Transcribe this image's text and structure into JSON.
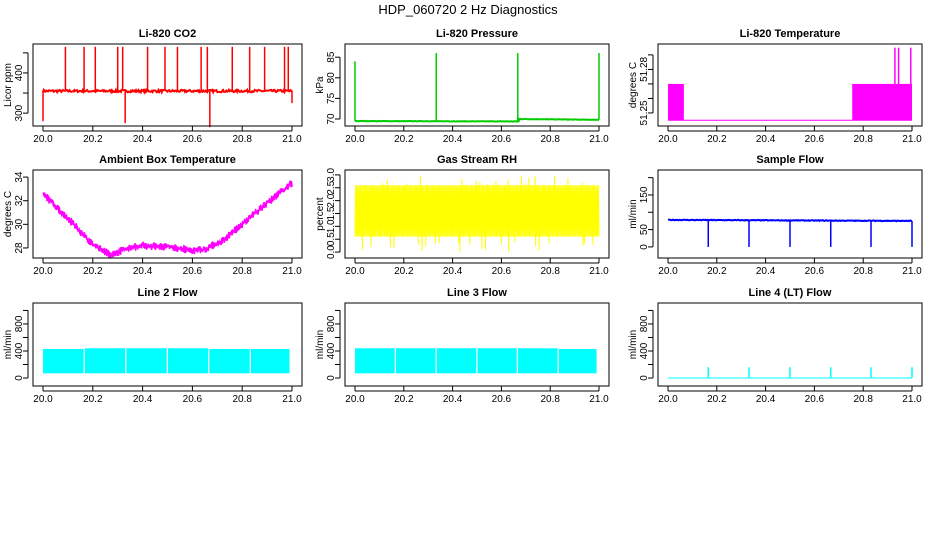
{
  "title": "HDP_060720  2 Hz Diagnostics",
  "chart_data": [
    {
      "type": "line",
      "title": "Li-820 CO2",
      "ylabel": "Licor ppm",
      "color": "#ff0000",
      "xlim": [
        20,
        21
      ],
      "ylim": [
        268,
        472
      ],
      "xticks": [
        "20.0",
        "20.2",
        "20.4",
        "20.6",
        "20.8",
        "21.0"
      ],
      "yticks": [
        {
          "v": 300,
          "label": "300"
        },
        {
          "v": 350,
          "label": ""
        },
        {
          "v": 400,
          "label": "400"
        },
        {
          "v": 450,
          "label": ""
        }
      ],
      "baseline": [
        [
          20.0,
          355
        ],
        [
          21.0,
          355
        ]
      ],
      "noise": 6,
      "spikes": [
        [
          20.0,
          280
        ],
        [
          20.09,
          465
        ],
        [
          20.165,
          465
        ],
        [
          20.21,
          465
        ],
        [
          20.3,
          465
        ],
        [
          20.32,
          465
        ],
        [
          20.33,
          275
        ],
        [
          20.42,
          465
        ],
        [
          20.49,
          465
        ],
        [
          20.54,
          465
        ],
        [
          20.635,
          465
        ],
        [
          20.66,
          465
        ],
        [
          20.67,
          265
        ],
        [
          20.76,
          465
        ],
        [
          20.83,
          465
        ],
        [
          20.89,
          465
        ],
        [
          20.97,
          465
        ],
        [
          20.985,
          465
        ],
        [
          21.0,
          325
        ]
      ]
    },
    {
      "type": "line",
      "title": "Li-820 Pressure",
      "ylabel": "kPa",
      "color": "#00cc00",
      "xlim": [
        20,
        21
      ],
      "ylim": [
        68.3,
        88.2
      ],
      "xticks": [
        "20.0",
        "20.2",
        "20.4",
        "20.6",
        "20.8",
        "21.0"
      ],
      "yticks": [
        {
          "v": 70,
          "label": "70"
        },
        {
          "v": 75,
          "label": "75"
        },
        {
          "v": 80,
          "label": "80"
        },
        {
          "v": 85,
          "label": "85"
        }
      ],
      "baseline": [
        [
          20.0,
          69.5
        ],
        [
          20.67,
          69.4
        ],
        [
          20.671,
          70.0
        ],
        [
          21.0,
          69.8
        ]
      ],
      "noise": 0.1,
      "spikes": [
        [
          20.0,
          84
        ],
        [
          20.333,
          86
        ],
        [
          20.667,
          86
        ],
        [
          21.0,
          86
        ]
      ]
    },
    {
      "type": "line",
      "title": "Li-820 Temperature",
      "ylabel": "degrees C",
      "color": "#ff00ff",
      "xlim": [
        20,
        21
      ],
      "ylim": [
        51.241,
        51.2975
      ],
      "xticks": [
        "20.0",
        "20.2",
        "20.4",
        "20.6",
        "20.8",
        "21.0"
      ],
      "yticks": [
        {
          "v": 51.25,
          "label": "51.25"
        },
        {
          "v": 51.26,
          "label": ""
        },
        {
          "v": 51.27,
          "label": ""
        },
        {
          "v": 51.28,
          "label": "51.28"
        },
        {
          "v": 51.29,
          "label": ""
        }
      ],
      "baseline": [
        [
          20.0,
          51.245
        ],
        [
          21.0,
          51.245
        ]
      ],
      "noise": 0,
      "bands": [
        [
          20.0,
          20.065,
          51.245,
          51.27
        ],
        [
          20.755,
          21.0,
          51.245,
          51.27
        ]
      ],
      "spikes": [
        [
          20.93,
          51.295
        ],
        [
          20.945,
          51.295
        ],
        [
          20.995,
          51.295
        ]
      ]
    },
    {
      "type": "area",
      "title": "Ambient Box Temperature",
      "ylabel": "degrees C",
      "color": "#ff00ff",
      "xlim": [
        20,
        21
      ],
      "ylim": [
        27.15,
        34.6
      ],
      "xticks": [
        "20.0",
        "20.2",
        "20.4",
        "20.6",
        "20.8",
        "21.0"
      ],
      "yticks": [
        {
          "v": 28,
          "label": "28"
        },
        {
          "v": 30,
          "label": "30"
        },
        {
          "v": 32,
          "label": "32"
        },
        {
          "v": 34,
          "label": "34"
        }
      ],
      "band_width": 0.7,
      "baseline": [
        [
          20.0,
          32.6
        ],
        [
          20.1,
          30.5
        ],
        [
          20.2,
          28.3
        ],
        [
          20.27,
          27.4
        ],
        [
          20.33,
          27.9
        ],
        [
          20.4,
          28.2
        ],
        [
          20.5,
          28.1
        ],
        [
          20.6,
          27.8
        ],
        [
          20.65,
          27.9
        ],
        [
          20.72,
          28.6
        ],
        [
          20.8,
          30.0
        ],
        [
          20.9,
          31.8
        ],
        [
          21.0,
          33.5
        ]
      ]
    },
    {
      "type": "area",
      "title": "Gas Stream RH",
      "ylabel": "percent",
      "color": "#ffff00",
      "xlim": [
        20,
        21
      ],
      "ylim": [
        -0.23,
        3.19
      ],
      "xticks": [
        "20.0",
        "20.2",
        "20.4",
        "20.6",
        "20.8",
        "21.0"
      ],
      "yticks": [
        {
          "v": 0,
          "label": "0.0"
        },
        {
          "v": 0.5,
          "label": "0.5"
        },
        {
          "v": 1,
          "label": "1.0"
        },
        {
          "v": 1.5,
          "label": "1.5"
        },
        {
          "v": 2,
          "label": "2.0"
        },
        {
          "v": 2.5,
          "label": "2.5"
        },
        {
          "v": 3,
          "label": "3.0"
        }
      ],
      "noise_band": [
        0.6,
        2.6
      ],
      "noise_extreme": [
        0.0,
        3.0
      ]
    },
    {
      "type": "line",
      "title": "Sample Flow",
      "ylabel": "ml/min",
      "color": "#0000ff",
      "xlim": [
        20,
        21
      ],
      "ylim": [
        -32,
        222
      ],
      "xticks": [
        "20.0",
        "20.2",
        "20.4",
        "20.6",
        "20.8",
        "21.0"
      ],
      "yticks": [
        {
          "v": 0,
          "label": "0"
        },
        {
          "v": 50,
          "label": "50"
        },
        {
          "v": 100,
          "label": ""
        },
        {
          "v": 150,
          "label": "150"
        },
        {
          "v": 200,
          "label": ""
        }
      ],
      "baseline": [
        [
          20.0,
          78
        ],
        [
          21.0,
          75
        ]
      ],
      "noise": 2,
      "spikes": [
        [
          20.165,
          0
        ],
        [
          20.332,
          0
        ],
        [
          20.5,
          0
        ],
        [
          20.667,
          0
        ],
        [
          20.832,
          0
        ],
        [
          21.0,
          0
        ]
      ]
    },
    {
      "type": "area",
      "title": "Line 2 Flow",
      "ylabel": "ml/min",
      "color": "#00ffff",
      "xlim": [
        20,
        21
      ],
      "ylim": [
        -118,
        1110
      ],
      "xticks": [
        "20.0",
        "20.2",
        "20.4",
        "20.6",
        "20.8",
        "21.0"
      ],
      "yticks": [
        {
          "v": 0,
          "label": "0"
        },
        {
          "v": 200,
          "label": ""
        },
        {
          "v": 400,
          "label": "400"
        },
        {
          "v": 600,
          "label": ""
        },
        {
          "v": 800,
          "label": "800"
        },
        {
          "v": 1000,
          "label": ""
        }
      ],
      "segments": [
        [
          20.0,
          20.163,
          70,
          430
        ],
        [
          20.168,
          20.33,
          70,
          440
        ],
        [
          20.335,
          20.497,
          70,
          440
        ],
        [
          20.502,
          20.663,
          70,
          440
        ],
        [
          20.668,
          20.83,
          70,
          430
        ],
        [
          20.835,
          20.99,
          70,
          430
        ]
      ]
    },
    {
      "type": "area",
      "title": "Line 3 Flow",
      "ylabel": "ml/min",
      "color": "#00ffff",
      "xlim": [
        20,
        21
      ],
      "ylim": [
        -118,
        1110
      ],
      "xticks": [
        "20.0",
        "20.2",
        "20.4",
        "20.6",
        "20.8",
        "21.0"
      ],
      "yticks": [
        {
          "v": 0,
          "label": "0"
        },
        {
          "v": 200,
          "label": ""
        },
        {
          "v": 400,
          "label": "400"
        },
        {
          "v": 600,
          "label": ""
        },
        {
          "v": 800,
          "label": "800"
        },
        {
          "v": 1000,
          "label": ""
        }
      ],
      "segments": [
        [
          20.0,
          20.163,
          70,
          440
        ],
        [
          20.168,
          20.33,
          70,
          440
        ],
        [
          20.335,
          20.497,
          70,
          440
        ],
        [
          20.502,
          20.663,
          70,
          440
        ],
        [
          20.668,
          20.83,
          70,
          440
        ],
        [
          20.835,
          20.99,
          70,
          430
        ]
      ]
    },
    {
      "type": "line",
      "title": "Line 4 (LT) Flow",
      "ylabel": "ml/min",
      "color": "#00ffff",
      "xlim": [
        20,
        21
      ],
      "ylim": [
        -118,
        1110
      ],
      "xticks": [
        "20.0",
        "20.2",
        "20.4",
        "20.6",
        "20.8",
        "21.0"
      ],
      "yticks": [
        {
          "v": 0,
          "label": "0"
        },
        {
          "v": 200,
          "label": ""
        },
        {
          "v": 400,
          "label": "400"
        },
        {
          "v": 600,
          "label": ""
        },
        {
          "v": 800,
          "label": "800"
        },
        {
          "v": 1000,
          "label": ""
        }
      ],
      "baseline": [
        [
          20.0,
          0
        ],
        [
          21.0,
          0
        ]
      ],
      "noise": 0,
      "spikes": [
        [
          20.165,
          160
        ],
        [
          20.332,
          160
        ],
        [
          20.5,
          160
        ],
        [
          20.667,
          160
        ],
        [
          20.832,
          160
        ],
        [
          21.0,
          160
        ]
      ]
    }
  ]
}
